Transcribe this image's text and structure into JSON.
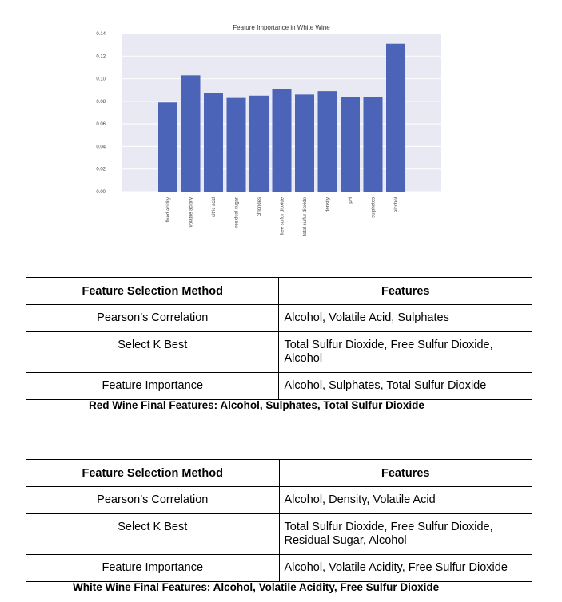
{
  "chart_data": {
    "type": "bar",
    "title": "Feature Importance in White Wine",
    "categories": [
      "fixed acidity",
      "volatile acidity",
      "citric acid",
      "residual sugar",
      "chlorides",
      "free sulfur dioxide",
      "total sulfur dioxide",
      "density",
      "pH",
      "sulphates",
      "alcohol"
    ],
    "values": [
      0.079,
      0.103,
      0.087,
      0.083,
      0.085,
      0.091,
      0.086,
      0.089,
      0.084,
      0.084,
      0.131
    ],
    "ylim": [
      0,
      0.14
    ],
    "yticks": [
      "0.00",
      "0.02",
      "0.04",
      "0.06",
      "0.08",
      "0.10",
      "0.12",
      "0.14"
    ],
    "xlabel": "",
    "ylabel": "",
    "grid": true,
    "colors": {
      "bar": "#4c64b8",
      "background": "#e9e9f4",
      "grid": "#ffffff"
    }
  },
  "red_table": {
    "headers": [
      "Feature Selection Method",
      "Features"
    ],
    "rows": [
      {
        "method": "Pearson’s Correlation",
        "features": "Alcohol, Volatile Acid, Sulphates"
      },
      {
        "method": "Select K Best",
        "features": "Total Sulfur Dioxide, Free Sulfur Dioxide, Alcohol"
      },
      {
        "method": "Feature Importance",
        "features": "Alcohol, Sulphates, Total Sulfur Dioxide"
      }
    ],
    "caption": "Red Wine Final Features: Alcohol, Sulphates, Total Sulfur Dioxide"
  },
  "white_table": {
    "headers": [
      "Feature Selection Method",
      "Features"
    ],
    "rows": [
      {
        "method": "Pearson’s Correlation",
        "features": "Alcohol, Density, Volatile Acid"
      },
      {
        "method": "Select K Best",
        "features": "Total Sulfur Dioxide, Free Sulfur Dioxide, Residual Sugar, Alcohol"
      },
      {
        "method": "Feature Importance",
        "features": "Alcohol, Volatile Acidity, Free Sulfur Dioxide"
      }
    ],
    "caption": "White Wine Final Features: Alcohol, Volatile Acidity, Free Sulfur Dioxide"
  }
}
